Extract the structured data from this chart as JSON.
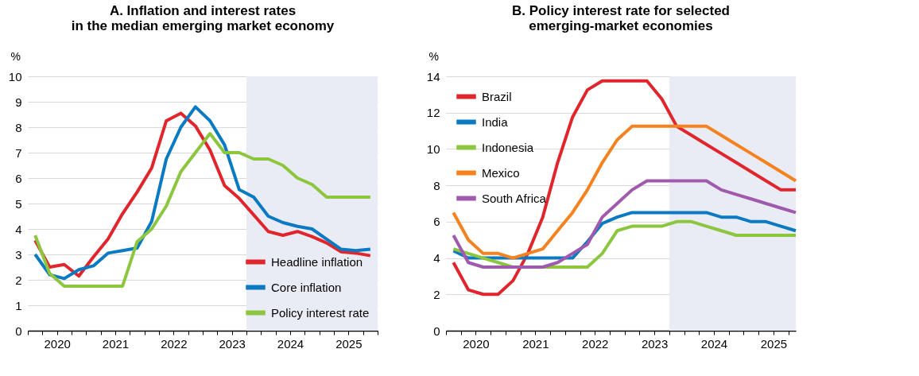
{
  "chart_data": [
    {
      "type": "line",
      "title": "A. Inflation and interest rates\nin the median emerging market economy",
      "ylabel": "%",
      "xlim": [
        2020,
        2026
      ],
      "ylim": [
        0,
        10
      ],
      "yticks": [
        0,
        1,
        2,
        3,
        4,
        5,
        6,
        7,
        8,
        9,
        10
      ],
      "xticks": [
        {
          "value": 2020,
          "label": null
        },
        {
          "value": 2020.25,
          "label": null
        },
        {
          "value": 2020.5,
          "label": "2020"
        },
        {
          "value": 2020.75,
          "label": null
        },
        {
          "value": 2021,
          "label": null
        },
        {
          "value": 2021.25,
          "label": null
        },
        {
          "value": 2021.5,
          "label": "2021"
        },
        {
          "value": 2021.75,
          "label": null
        },
        {
          "value": 2022,
          "label": null
        },
        {
          "value": 2022.25,
          "label": null
        },
        {
          "value": 2022.5,
          "label": "2022"
        },
        {
          "value": 2022.75,
          "label": null
        },
        {
          "value": 2023,
          "label": null
        },
        {
          "value": 2023.25,
          "label": null
        },
        {
          "value": 2023.5,
          "label": "2023"
        },
        {
          "value": 2023.75,
          "label": null
        },
        {
          "value": 2024,
          "label": null
        },
        {
          "value": 2024.25,
          "label": null
        },
        {
          "value": 2024.5,
          "label": "2024"
        },
        {
          "value": 2024.75,
          "label": null
        },
        {
          "value": 2025,
          "label": null
        },
        {
          "value": 2025.25,
          "label": null
        },
        {
          "value": 2025.5,
          "label": "2025"
        },
        {
          "value": 2025.75,
          "label": null
        },
        {
          "value": 2026,
          "label": null
        }
      ],
      "x": [
        2020.125,
        2020.375,
        2020.625,
        2020.875,
        2021.125,
        2021.375,
        2021.625,
        2021.875,
        2022.125,
        2022.375,
        2022.625,
        2022.875,
        2023.125,
        2023.375,
        2023.625,
        2023.875,
        2024.125,
        2024.375,
        2024.625,
        2024.875,
        2025.125,
        2025.375,
        2025.625,
        2025.875
      ],
      "series": [
        {
          "name": "Headline inflation",
          "color": "#e0262c",
          "values": [
            3.55,
            2.5,
            2.6,
            2.15,
            2.9,
            3.6,
            4.6,
            5.45,
            6.4,
            8.25,
            8.55,
            8.05,
            7.1,
            5.7,
            5.2,
            4.55,
            3.9,
            3.75,
            3.9,
            3.7,
            3.45,
            3.1,
            3.05,
            2.95
          ]
        },
        {
          "name": "Core inflation",
          "color": "#0b7ac2",
          "values": [
            3.0,
            2.2,
            2.05,
            2.4,
            2.55,
            3.05,
            3.15,
            3.25,
            4.3,
            6.75,
            8.0,
            8.8,
            8.25,
            7.3,
            5.55,
            5.25,
            4.5,
            4.25,
            4.1,
            4.0,
            3.6,
            3.2,
            3.15,
            3.2
          ]
        },
        {
          "name": "Policy interest rate",
          "color": "#8cc63e",
          "values": [
            3.75,
            2.25,
            1.75,
            1.75,
            1.75,
            1.75,
            1.75,
            3.5,
            4.0,
            4.9,
            6.25,
            7.0,
            7.75,
            7.0,
            7.0,
            6.75,
            6.75,
            6.5,
            6.0,
            5.75,
            5.25,
            5.25,
            5.25,
            5.25
          ]
        }
      ],
      "bands": [
        {
          "axis": "x",
          "from": 2023.75,
          "to": 2026,
          "color": "#e9ecf4"
        }
      ],
      "grid": "y",
      "legend": "bottom right",
      "line_style": "solid",
      "marker": "none"
    },
    {
      "type": "line",
      "title": "B. Policy interest rate for selected\nemerging-market economies",
      "ylabel": "%",
      "xlim": [
        2020,
        2025.875
      ],
      "ylim": [
        0,
        14
      ],
      "yticks": [
        0,
        2,
        4,
        6,
        8,
        10,
        12,
        14
      ],
      "xticks": [
        {
          "value": 2020,
          "label": null
        },
        {
          "value": 2020.25,
          "label": null
        },
        {
          "value": 2020.5,
          "label": "2020"
        },
        {
          "value": 2020.75,
          "label": null
        },
        {
          "value": 2021,
          "label": null
        },
        {
          "value": 2021.25,
          "label": null
        },
        {
          "value": 2021.5,
          "label": "2021"
        },
        {
          "value": 2021.75,
          "label": null
        },
        {
          "value": 2022,
          "label": null
        },
        {
          "value": 2022.25,
          "label": null
        },
        {
          "value": 2022.5,
          "label": "2022"
        },
        {
          "value": 2022.75,
          "label": null
        },
        {
          "value": 2023,
          "label": null
        },
        {
          "value": 2023.25,
          "label": null
        },
        {
          "value": 2023.5,
          "label": "2023"
        },
        {
          "value": 2023.75,
          "label": null
        },
        {
          "value": 2024,
          "label": null
        },
        {
          "value": 2024.25,
          "label": null
        },
        {
          "value": 2024.5,
          "label": "2024"
        },
        {
          "value": 2024.75,
          "label": null
        },
        {
          "value": 2025,
          "label": null
        },
        {
          "value": 2025.25,
          "label": null
        },
        {
          "value": 2025.5,
          "label": "2025"
        },
        {
          "value": 2025.75,
          "label": null
        }
      ],
      "x": [
        2020.125,
        2020.375,
        2020.625,
        2020.875,
        2021.125,
        2021.375,
        2021.625,
        2021.875,
        2022.125,
        2022.375,
        2022.625,
        2022.875,
        2023.125,
        2023.375,
        2023.625,
        2023.875,
        2024.125,
        2024.375,
        2024.625,
        2024.875,
        2025.125,
        2025.375,
        2025.625,
        2025.875
      ],
      "series": [
        {
          "name": "Brazil",
          "color": "#e0262c",
          "values": [
            3.75,
            2.25,
            2.0,
            2.0,
            2.75,
            4.25,
            6.25,
            9.25,
            11.75,
            13.25,
            13.75,
            13.75,
            13.75,
            13.75,
            12.75,
            11.25,
            10.75,
            10.25,
            9.75,
            9.25,
            8.75,
            8.25,
            7.75,
            7.75
          ]
        },
        {
          "name": "India",
          "color": "#0b7ac2",
          "values": [
            4.4,
            4.0,
            4.0,
            4.0,
            4.0,
            4.0,
            4.0,
            4.0,
            4.0,
            4.9,
            5.9,
            6.25,
            6.5,
            6.5,
            6.5,
            6.5,
            6.5,
            6.5,
            6.25,
            6.25,
            6.0,
            6.0,
            5.75,
            5.5
          ]
        },
        {
          "name": "Indonesia",
          "color": "#8cc63e",
          "values": [
            4.5,
            4.25,
            4.0,
            3.75,
            3.5,
            3.5,
            3.5,
            3.5,
            3.5,
            3.5,
            4.25,
            5.5,
            5.75,
            5.75,
            5.75,
            6.0,
            6.0,
            5.75,
            5.5,
            5.25,
            5.25,
            5.25,
            5.25,
            5.25
          ]
        },
        {
          "name": "Mexico",
          "color": "#f5821f",
          "values": [
            6.5,
            5.0,
            4.25,
            4.25,
            4.0,
            4.25,
            4.5,
            5.5,
            6.5,
            7.75,
            9.25,
            10.5,
            11.25,
            11.25,
            11.25,
            11.25,
            11.25,
            11.25,
            10.75,
            10.25,
            9.75,
            9.25,
            8.75,
            8.25
          ]
        },
        {
          "name": "South Africa",
          "color": "#a05aad",
          "values": [
            5.25,
            3.75,
            3.5,
            3.5,
            3.5,
            3.5,
            3.5,
            3.75,
            4.25,
            4.75,
            6.25,
            7.0,
            7.75,
            8.25,
            8.25,
            8.25,
            8.25,
            8.25,
            7.75,
            7.5,
            7.25,
            7.0,
            6.75,
            6.5
          ]
        }
      ],
      "bands": [
        {
          "axis": "x",
          "from": 2023.75,
          "to": 2025.875,
          "color": "#e9ecf4"
        }
      ],
      "grid": "y",
      "legend": "top left",
      "line_style": "solid",
      "marker": "none"
    }
  ]
}
